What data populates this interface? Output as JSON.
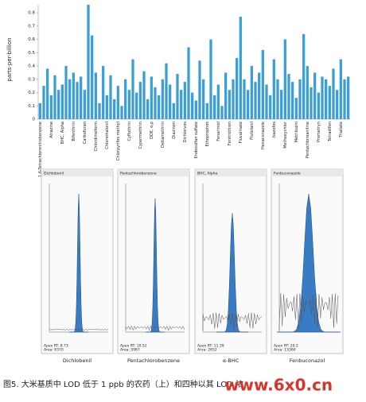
{
  "chart_data": {
    "type": "bar",
    "y_label": "parts-per-billion",
    "color": "#3a9fd8",
    "ylim": [
      0,
      0.86
    ],
    "yticks": [
      0,
      0.1,
      0.2,
      0.3,
      0.4,
      0.5,
      0.6,
      0.7,
      0.8
    ],
    "categories": [
      "1,6-Tetrachloronitrobenzene",
      null,
      null,
      "Atrazine",
      null,
      null,
      "BHC, Alpha",
      null,
      null,
      "Bifenthrin",
      null,
      null,
      "Carbofuran",
      null,
      null,
      "Chlordimeform",
      null,
      null,
      "Chlorothalonil",
      null,
      null,
      "Chlorpyrifos methyl",
      null,
      null,
      "Cyfluthrin",
      null,
      null,
      "Cypermethrin",
      null,
      null,
      "DDE, o,p",
      null,
      null,
      "Deltamethrin",
      null,
      null,
      "Diazinon",
      null,
      null,
      "Dichlorvos",
      null,
      null,
      "Endosulfan sulfate",
      null,
      null,
      "Ethoprophos",
      null,
      null,
      "Fenarimol",
      null,
      null,
      "Fenitrothion",
      null,
      null,
      "Fluvalinate",
      null,
      null,
      "Flutolanil",
      null,
      null,
      "Hexaconazole",
      null,
      null,
      "Isazofos",
      null,
      null,
      "Methoxychlor",
      null,
      null,
      "Metribuzin",
      null,
      null,
      "Pentachloroaniline",
      null,
      null,
      "Prometryn",
      null,
      null,
      "Tetradifon",
      null,
      null,
      "Triallate",
      null,
      null
    ],
    "values": [
      0.12,
      0.25,
      0.38,
      0.18,
      0.33,
      0.22,
      0.26,
      0.4,
      0.3,
      0.35,
      0.28,
      0.32,
      0.22,
      0.86,
      0.63,
      0.35,
      0.12,
      0.4,
      0.18,
      0.33,
      0.15,
      0.25,
      0.1,
      0.3,
      0.22,
      0.45,
      0.2,
      0.28,
      0.36,
      0.15,
      0.32,
      0.24,
      0.18,
      0.3,
      0.42,
      0.26,
      0.12,
      0.34,
      0.22,
      0.28,
      0.54,
      0.2,
      0.14,
      0.44,
      0.3,
      0.12,
      0.6,
      0.18,
      0.26,
      0.1,
      0.35,
      0.22,
      0.3,
      0.46,
      0.77,
      0.3,
      0.22,
      0.4,
      0.28,
      0.35,
      0.52,
      0.26,
      0.18,
      0.45,
      0.3,
      0.22,
      0.6,
      0.34,
      0.28,
      0.16,
      0.3,
      0.64,
      0.4,
      0.24,
      0.35,
      0.2,
      0.32,
      0.3,
      0.25,
      0.38,
      0.22,
      0.45,
      0.3,
      0.32
    ]
  },
  "panels": [
    {
      "header": "Dichlobenil",
      "info": [
        "Apex RT: 8.73",
        "Area: 6370"
      ],
      "name": "Dichlobenil"
    },
    {
      "header": "Pentachlorobenzene",
      "info": [
        "Apex RT: 10.52",
        "Area: 5967"
      ],
      "name": "Pentachlorobenzene"
    },
    {
      "header": "BHC, Alpha",
      "info": [
        "Apex RT: 11.39",
        "Area: 2652"
      ],
      "name": "α-BHC"
    },
    {
      "header": "Fenbuconazole",
      "info": [
        "Apex RT: 20.2",
        "Area: 13360"
      ],
      "name": "Fenbuconazol"
    }
  ],
  "caption": "图5. 大米基质中 LOD 低于 1 ppb 的农药（上）和四种以其 LOD 浓",
  "watermark": "www.6x0.cn"
}
